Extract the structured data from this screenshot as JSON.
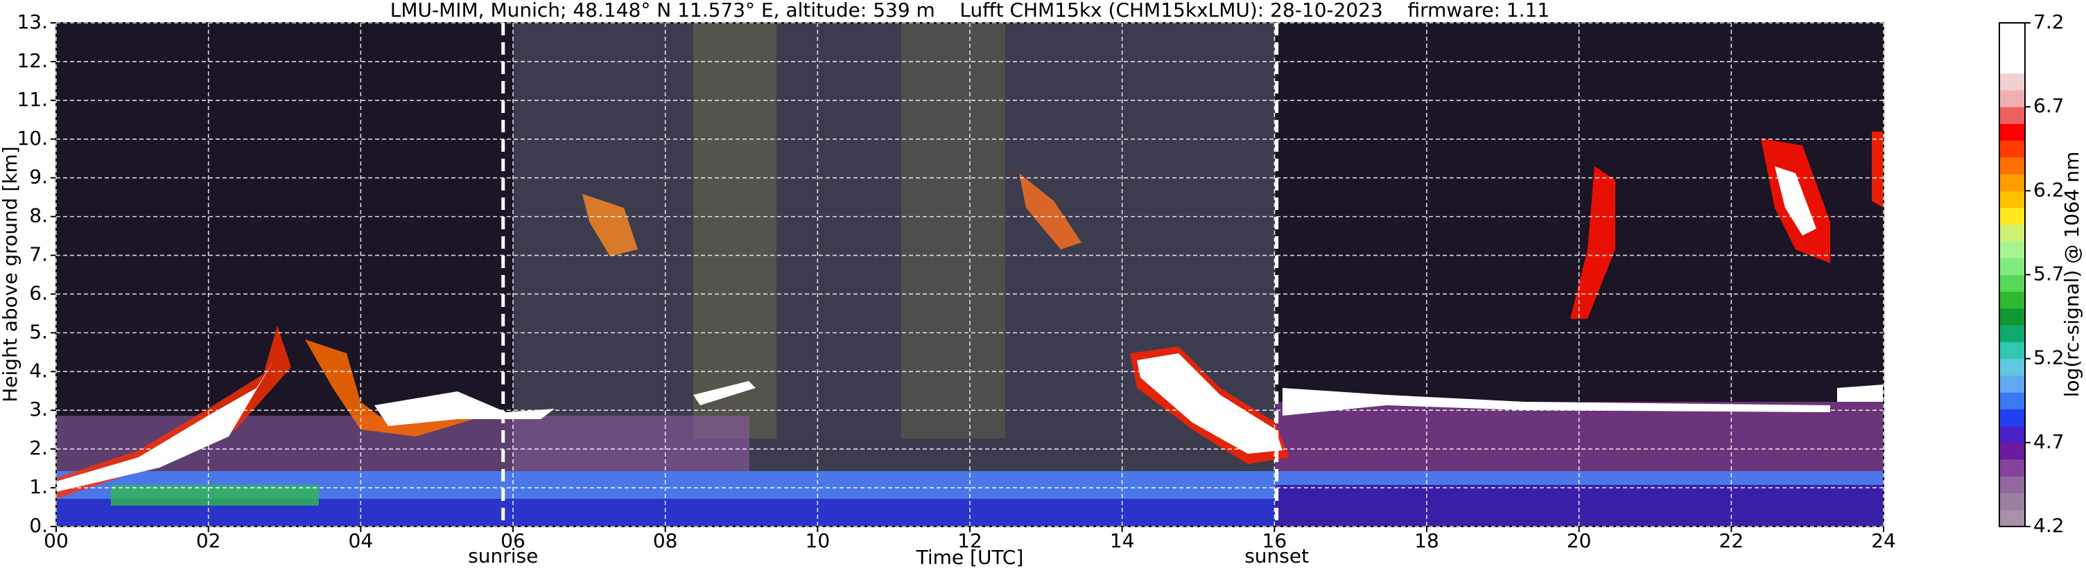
{
  "chart_data": {
    "type": "heatmap",
    "title": "LMU-MIM, Munich; 48.148° N 11.573° E, altitude: 539 m    Lufft CHM15kx (CHM15kxLMU): 28-10-2023    firmware: 1.11",
    "x_label": "Time [UTC]",
    "y_label": "Height above ground [km]",
    "xlim": [
      0,
      24
    ],
    "xticks": [
      {
        "value": 0,
        "label": "00"
      },
      {
        "value": 2,
        "label": "02"
      },
      {
        "value": 4,
        "label": "04"
      },
      {
        "value": 6,
        "label": "06"
      },
      {
        "value": 8,
        "label": "08"
      },
      {
        "value": 10,
        "label": "10"
      },
      {
        "value": 12,
        "label": "12"
      },
      {
        "value": 14,
        "label": "14"
      },
      {
        "value": 16,
        "label": "16"
      },
      {
        "value": 18,
        "label": "18"
      },
      {
        "value": 20,
        "label": "20"
      },
      {
        "value": 22,
        "label": "22"
      },
      {
        "value": 24,
        "label": "24"
      }
    ],
    "ylim": [
      0,
      13
    ],
    "yticks": [
      {
        "value": 0,
        "label": "0."
      },
      {
        "value": 1,
        "label": "1."
      },
      {
        "value": 2,
        "label": "2."
      },
      {
        "value": 3,
        "label": "3."
      },
      {
        "value": 4,
        "label": "4."
      },
      {
        "value": 5,
        "label": "5."
      },
      {
        "value": 6,
        "label": "6."
      },
      {
        "value": 7,
        "label": "7."
      },
      {
        "value": 8,
        "label": "8."
      },
      {
        "value": 9,
        "label": "9."
      },
      {
        "value": 10,
        "label": "10."
      },
      {
        "value": 11,
        "label": "11."
      },
      {
        "value": 12,
        "label": "12."
      },
      {
        "value": 13,
        "label": "13."
      }
    ],
    "grid": true,
    "annotations": [
      {
        "x": 5.87,
        "label": "sunrise"
      },
      {
        "x": 16.03,
        "label": "sunset"
      }
    ],
    "colorbar": {
      "label": "log(rc-signal) @ 1064 nm",
      "lim": [
        4.2,
        7.2
      ],
      "ticks": [
        4.2,
        4.7,
        5.2,
        5.7,
        6.2,
        6.7,
        7.2
      ],
      "colors": [
        "#a890a8",
        "#9c80a4",
        "#92689e",
        "#84449c",
        "#6e1aa0",
        "#4a20c8",
        "#2040f0",
        "#3a78f4",
        "#60a8f0",
        "#60c8e0",
        "#30c8b0",
        "#10a870",
        "#109830",
        "#30b830",
        "#58d858",
        "#80ec80",
        "#a8f490",
        "#d0f070",
        "#ffe820",
        "#ffc000",
        "#ff9c00",
        "#ff7000",
        "#ff3c00",
        "#ff0000",
        "#f06060",
        "#f0b0b0",
        "#f0d0d0",
        "#ffffff",
        "#ffffff",
        "#ffffff"
      ]
    }
  }
}
